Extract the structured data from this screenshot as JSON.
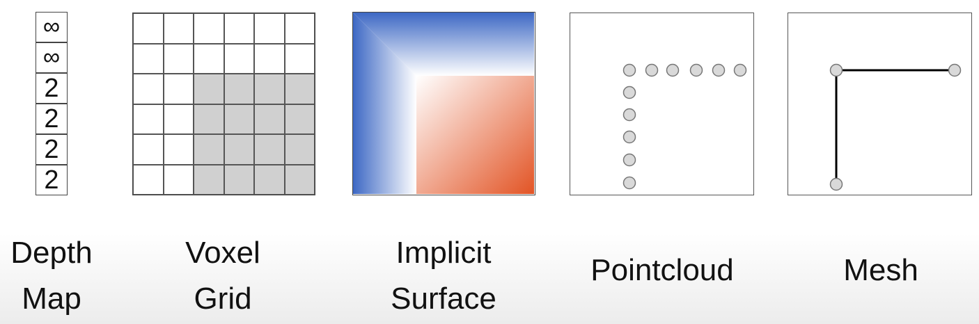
{
  "depth_map": {
    "values": [
      "∞",
      "∞",
      "2",
      "2",
      "2",
      "2"
    ],
    "label_line1": "Depth",
    "label_line2": "Map"
  },
  "voxel_grid": {
    "rows": 6,
    "cols": 6,
    "occupancy": [
      [
        0,
        0,
        0,
        0,
        0,
        0
      ],
      [
        0,
        0,
        0,
        0,
        0,
        0
      ],
      [
        0,
        0,
        1,
        1,
        1,
        1
      ],
      [
        0,
        0,
        1,
        1,
        1,
        1
      ],
      [
        0,
        0,
        1,
        1,
        1,
        1
      ],
      [
        0,
        0,
        1,
        1,
        1,
        1
      ]
    ],
    "label_line1": "Voxel",
    "label_line2": "Grid"
  },
  "implicit_surface": {
    "inside_color": "#e25425",
    "outside_color": "#3d68c4",
    "surface_color": "#ffffff",
    "label_line1": "Implicit",
    "label_line2": "Surface"
  },
  "pointcloud": {
    "label": "Pointcloud",
    "point_color": "#d9d9d9"
  },
  "mesh": {
    "label": "Mesh",
    "vertex_color": "#d9d9d9",
    "edge_color": "#000000"
  }
}
